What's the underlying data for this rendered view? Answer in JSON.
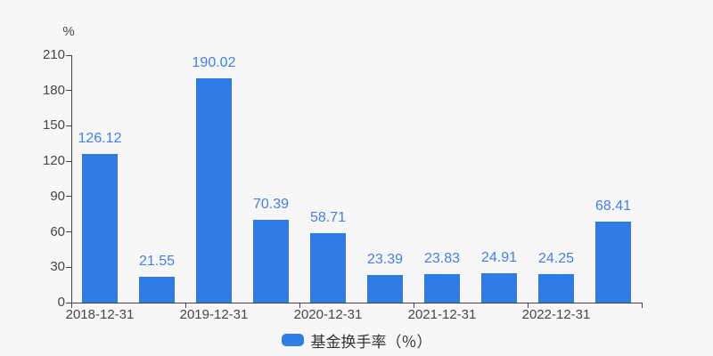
{
  "page": {
    "background_color": "#f7f7f7"
  },
  "chart_data": {
    "type": "bar",
    "title": "",
    "y_axis_unit_label": "%",
    "ylabel": "%",
    "xlabel": "",
    "ylim": [
      0,
      210
    ],
    "y_ticks": [
      0,
      30,
      60,
      90,
      120,
      150,
      180,
      210
    ],
    "grid": false,
    "num_bars": 10,
    "values": [
      126.12,
      21.55,
      190.02,
      70.39,
      58.71,
      23.39,
      23.83,
      24.91,
      24.25,
      68.41
    ],
    "value_labels": [
      "126.12",
      "21.55",
      "190.02",
      "70.39",
      "58.71",
      "23.39",
      "23.83",
      "24.91",
      "24.25",
      "68.41"
    ],
    "x_tick_labels": [
      "2018-12-31",
      "2019-12-31",
      "2020-12-31",
      "2021-12-31",
      "2022-12-31"
    ],
    "labeled_bar_indices": [
      0,
      2,
      4,
      6,
      8
    ],
    "legend": {
      "label": "基金换手率（％）",
      "position": "bottom"
    },
    "colors": {
      "bar": "#2e7de6",
      "value_label": "#3e7ff2",
      "axis": "#444444",
      "tick_text": "#464646",
      "legend_text": "#333333",
      "background": "#f7f7f7"
    }
  }
}
